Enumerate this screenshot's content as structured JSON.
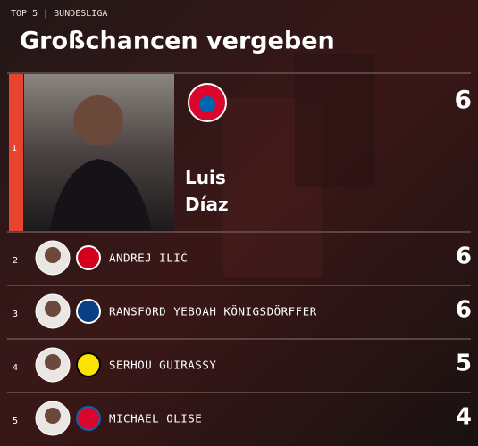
{
  "header": {
    "kicker": "TOP 5 | BUNDESLIGA",
    "title": "Großchancen vergeben"
  },
  "rows": [
    {
      "rank": 1,
      "name": "Luis Díaz",
      "value": 6
    },
    {
      "rank": 2,
      "name": "ANDREJ ILIĆ",
      "value": 6
    },
    {
      "rank": 3,
      "name": "RANSFORD YEBOAH KÖNIGSDÖRFFER",
      "value": 6
    },
    {
      "rank": 4,
      "name": "SERHOU GUIRASSY",
      "value": 5
    },
    {
      "rank": 5,
      "name": "MICHAEL OLISE",
      "value": 4
    }
  ]
}
